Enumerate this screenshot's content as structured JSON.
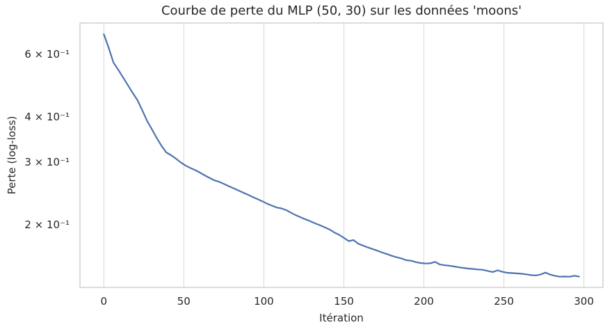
{
  "chart_data": {
    "type": "line",
    "title": "Courbe de perte du MLP (50, 30) sur les données 'moons'",
    "xlabel": "Itération",
    "ylabel": "Perte (log-loss)",
    "x_scale": "linear",
    "y_scale": "log",
    "xlim": [
      -14.9,
      311.9
    ],
    "ylim": [
      0.1336,
      0.734
    ],
    "grid": "vertical-only",
    "legend": "none",
    "xticks": [
      {
        "value": 0,
        "label": "0"
      },
      {
        "value": 50,
        "label": "50"
      },
      {
        "value": 100,
        "label": "100"
      },
      {
        "value": 150,
        "label": "150"
      },
      {
        "value": 200,
        "label": "200"
      },
      {
        "value": 250,
        "label": "250"
      },
      {
        "value": 300,
        "label": "300"
      }
    ],
    "yticks": [
      {
        "value": 0.6,
        "label": "6 × 10⁻¹"
      },
      {
        "value": 0.4,
        "label": "4 × 10⁻¹"
      },
      {
        "value": 0.3,
        "label": "3 × 10⁻¹"
      },
      {
        "value": 0.2,
        "label": "2 × 10⁻¹"
      }
    ],
    "colors": {
      "line": "#4C72B0",
      "grid": "#d9d9d9",
      "spine": "#c9c9c9",
      "text": "#262626",
      "background": "#ffffff"
    },
    "line_width": 2.2,
    "series": [
      {
        "name": "perte",
        "x": [
          0,
          3,
          6,
          9,
          12,
          15,
          18,
          21,
          24,
          27,
          30,
          33,
          36,
          39,
          42,
          45,
          48,
          51,
          54,
          57,
          60,
          63,
          66,
          69,
          72,
          75,
          78,
          81,
          84,
          87,
          90,
          93,
          96,
          99,
          102,
          105,
          108,
          111,
          114,
          117,
          120,
          123,
          126,
          129,
          132,
          135,
          138,
          141,
          144,
          147,
          150,
          153,
          156,
          159,
          162,
          165,
          168,
          171,
          174,
          177,
          180,
          183,
          186,
          189,
          192,
          195,
          198,
          201,
          204,
          207,
          210,
          213,
          216,
          219,
          222,
          225,
          228,
          231,
          234,
          237,
          240,
          243,
          246,
          249,
          252,
          255,
          258,
          261,
          264,
          267,
          270,
          273,
          276,
          279,
          282,
          285,
          288,
          291,
          294,
          297
        ],
        "y": [
          0.683,
          0.626,
          0.569,
          0.543,
          0.517,
          0.492,
          0.468,
          0.4465,
          0.4185,
          0.3907,
          0.3705,
          0.3502,
          0.333,
          0.3188,
          0.3132,
          0.3065,
          0.299,
          0.293,
          0.2885,
          0.2845,
          0.28,
          0.275,
          0.2706,
          0.2664,
          0.2639,
          0.2602,
          0.2565,
          0.2531,
          0.2496,
          0.2462,
          0.2427,
          0.2392,
          0.236,
          0.2327,
          0.2291,
          0.2262,
          0.2235,
          0.2222,
          0.2198,
          0.216,
          0.2127,
          0.2098,
          0.2071,
          0.2046,
          0.2018,
          0.1995,
          0.1968,
          0.1941,
          0.1904,
          0.1875,
          0.1838,
          0.18,
          0.1812,
          0.177,
          0.1748,
          0.1728,
          0.171,
          0.1692,
          0.1672,
          0.1655,
          0.1637,
          0.1622,
          0.161,
          0.1591,
          0.1586,
          0.1572,
          0.1563,
          0.1558,
          0.156,
          0.1575,
          0.1548,
          0.1541,
          0.1536,
          0.1528,
          0.152,
          0.1514,
          0.1508,
          0.1504,
          0.1499,
          0.1496,
          0.1485,
          0.1475,
          0.1491,
          0.1477,
          0.1468,
          0.1465,
          0.1462,
          0.1459,
          0.1453,
          0.1446,
          0.1443,
          0.1452,
          0.147,
          0.145,
          0.1439,
          0.1431,
          0.1433,
          0.1431,
          0.144,
          0.1433
        ]
      }
    ]
  }
}
